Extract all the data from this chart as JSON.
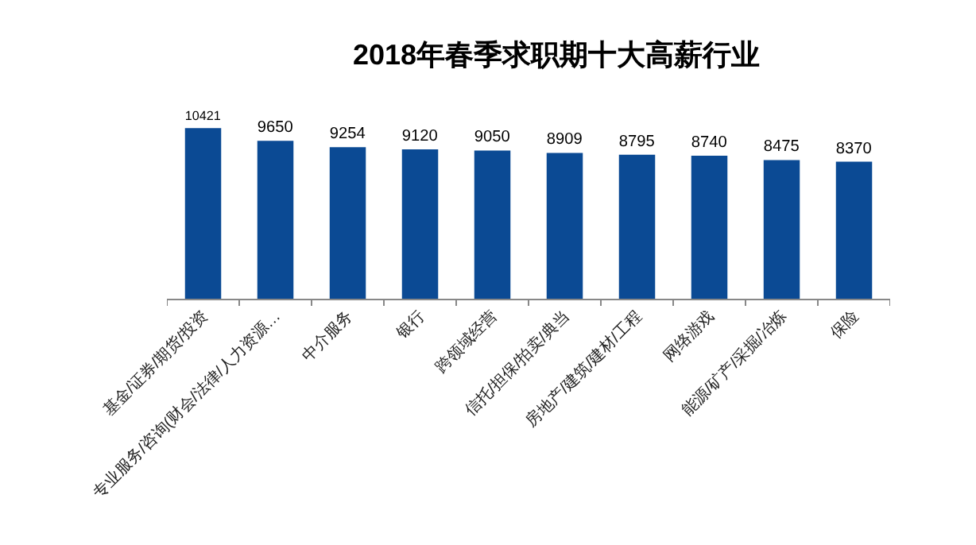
{
  "chart_data": {
    "type": "bar",
    "title": "2018年春季求职期十大高薪行业",
    "categories": [
      "基金/证券/期货/投资",
      "专业服务/咨询(财会/法律/人力资源…",
      "中介服务",
      "银行",
      "跨领域经营",
      "信托/担保/拍卖/典当",
      "房地产/建筑/建材/工程",
      "网络游戏",
      "能源/矿产/采掘/冶炼",
      "保险"
    ],
    "values": [
      10421,
      9650,
      9254,
      9120,
      9050,
      8909,
      8795,
      8740,
      8475,
      8370
    ],
    "color": "#0b4a94",
    "data_labels": true,
    "tick_labels": "x"
  }
}
